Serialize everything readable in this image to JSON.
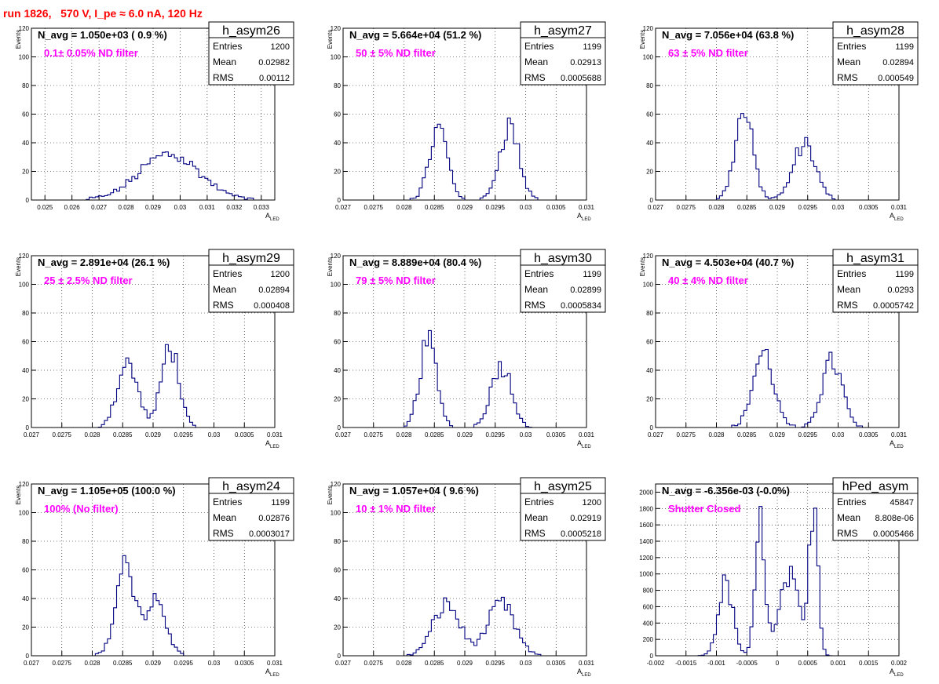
{
  "page_title": "run 1826,   570 V, I_pe ≈ 6.0 nA, 120 Hz",
  "colors": {
    "title": "#ff0000",
    "histogram": "#000080",
    "annotation": "#ff00ff",
    "grid": "#000000",
    "frame": "#000000"
  },
  "chart_data": [
    {
      "type": "bar",
      "name": "h_asym26",
      "navg": "N_avg = 1.050e+03 ( 0.9 %)",
      "note": "0.1± 0.05% ND filter",
      "stats": [
        {
          "label": "Entries",
          "value": "1200"
        },
        {
          "label": "Mean",
          "value": "0.02982"
        },
        {
          "label": "RMS",
          "value": "0.00112"
        }
      ],
      "xlabel": "A_LED",
      "ylabel": "Events",
      "xlim": [
        0.0245,
        0.0335
      ],
      "ylim": [
        0,
        120
      ],
      "xticks": [
        "0.025",
        "0.026",
        "0.027",
        "0.028",
        "0.029",
        "0.03",
        "0.031",
        "0.032",
        "0.033"
      ],
      "xtick_values": [
        0.025,
        0.026,
        0.027,
        0.028,
        0.029,
        0.03,
        0.031,
        0.032,
        0.033
      ],
      "yticks": [
        0,
        20,
        40,
        60,
        80,
        100,
        120
      ],
      "grid": true,
      "peaks": [
        {
          "x": 0.0296,
          "y": 32,
          "w": 0.0011
        }
      ]
    },
    {
      "type": "bar",
      "name": "h_asym27",
      "navg": "N_avg = 5.664e+04 (51.2 %)",
      "note": "50 ± 5% ND filter",
      "stats": [
        {
          "label": "Entries",
          "value": "1199"
        },
        {
          "label": "Mean",
          "value": "0.02913"
        },
        {
          "label": "RMS",
          "value": "0.0005688"
        }
      ],
      "xlabel": "A_LED",
      "ylabel": "Events",
      "xlim": [
        0.027,
        0.031
      ],
      "ylim": [
        0,
        120
      ],
      "xticks": [
        "0.027",
        "0.0275",
        "0.028",
        "0.0285",
        "0.029",
        "0.0295",
        "0.03",
        "0.0305",
        "0.031"
      ],
      "xtick_values": [
        0.027,
        0.0275,
        0.028,
        0.0285,
        0.029,
        0.0295,
        0.03,
        0.0305,
        0.031
      ],
      "yticks": [
        0,
        20,
        40,
        60,
        80,
        100,
        120
      ],
      "grid": true,
      "peaks": [
        {
          "x": 0.02857,
          "y": 50,
          "w": 0.00015
        },
        {
          "x": 0.02973,
          "y": 52,
          "w": 0.00016
        }
      ]
    },
    {
      "type": "bar",
      "name": "h_asym28",
      "navg": "N_avg = 7.056e+04 (63.8 %)",
      "note": "63 ± 5% ND filter",
      "stats": [
        {
          "label": "Entries",
          "value": "1199"
        },
        {
          "label": "Mean",
          "value": "0.02894"
        },
        {
          "label": "RMS",
          "value": "0.000549"
        }
      ],
      "xlabel": "A_LED",
      "ylabel": "Events",
      "xlim": [
        0.027,
        0.031
      ],
      "ylim": [
        0,
        120
      ],
      "xticks": [
        "0.027",
        "0.0275",
        "0.028",
        "0.0285",
        "0.029",
        "0.0295",
        "0.03",
        "0.0305",
        "0.031"
      ],
      "xtick_values": [
        0.027,
        0.0275,
        0.028,
        0.0285,
        0.029,
        0.0295,
        0.03,
        0.0305,
        0.031
      ],
      "yticks": [
        0,
        20,
        40,
        60,
        80,
        100,
        120
      ],
      "grid": true,
      "peaks": [
        {
          "x": 0.02845,
          "y": 60,
          "w": 0.00015
        },
        {
          "x": 0.02945,
          "y": 40,
          "w": 0.00018
        }
      ]
    },
    {
      "type": "bar",
      "name": "h_asym29",
      "navg": "N_avg = 2.891e+04 (26.1 %)",
      "note": "25 ± 2.5% ND filter",
      "stats": [
        {
          "label": "Entries",
          "value": "1200"
        },
        {
          "label": "Mean",
          "value": "0.02894"
        },
        {
          "label": "RMS",
          "value": "0.000408"
        }
      ],
      "xlabel": "A_LED",
      "ylabel": "Events",
      "xlim": [
        0.027,
        0.031
      ],
      "ylim": [
        0,
        120
      ],
      "xticks": [
        "0.027",
        "0.0275",
        "0.028",
        "0.0285",
        "0.029",
        "0.0295",
        "0.03",
        "0.0305",
        "0.031"
      ],
      "xtick_values": [
        0.027,
        0.0275,
        0.028,
        0.0285,
        0.029,
        0.0295,
        0.03,
        0.0305,
        0.031
      ],
      "yticks": [
        0,
        20,
        40,
        60,
        80,
        100,
        120
      ],
      "grid": true,
      "peaks": [
        {
          "x": 0.02858,
          "y": 44,
          "w": 0.00017
        },
        {
          "x": 0.02928,
          "y": 58,
          "w": 0.00014
        }
      ]
    },
    {
      "type": "bar",
      "name": "h_asym30",
      "navg": "N_avg = 8.889e+04 (80.4 %)",
      "note": "79 ± 5% ND filter",
      "stats": [
        {
          "label": "Entries",
          "value": "1199"
        },
        {
          "label": "Mean",
          "value": "0.02899"
        },
        {
          "label": "RMS",
          "value": "0.0005834"
        }
      ],
      "xlabel": "A_LED",
      "ylabel": "Events",
      "xlim": [
        0.027,
        0.031
      ],
      "ylim": [
        0,
        120
      ],
      "xticks": [
        "0.027",
        "0.0275",
        "0.028",
        "0.0285",
        "0.029",
        "0.0295",
        "0.03",
        "0.0305",
        "0.031"
      ],
      "xtick_values": [
        0.027,
        0.0275,
        0.028,
        0.0285,
        0.029,
        0.0295,
        0.03,
        0.0305,
        0.031
      ],
      "yticks": [
        0,
        20,
        40,
        60,
        80,
        100,
        120
      ],
      "grid": true,
      "peaks": [
        {
          "x": 0.0284,
          "y": 60,
          "w": 0.00014
        },
        {
          "x": 0.0296,
          "y": 44,
          "w": 0.00017
        }
      ]
    },
    {
      "type": "bar",
      "name": "h_asym31",
      "navg": "N_avg = 4.503e+04 (40.7 %)",
      "note": "40 ± 4% ND filter",
      "stats": [
        {
          "label": "Entries",
          "value": "1199"
        },
        {
          "label": "Mean",
          "value": "0.0293"
        },
        {
          "label": "RMS",
          "value": "0.0005742"
        }
      ],
      "xlabel": "A_LED",
      "ylabel": "Events",
      "xlim": [
        0.027,
        0.031
      ],
      "ylim": [
        0,
        120
      ],
      "xticks": [
        "0.027",
        "0.0275",
        "0.028",
        "0.0285",
        "0.029",
        "0.0295",
        "0.03",
        "0.0305",
        "0.031"
      ],
      "xtick_values": [
        0.027,
        0.0275,
        0.028,
        0.0285,
        0.029,
        0.0295,
        0.03,
        0.0305,
        0.031
      ],
      "yticks": [
        0,
        20,
        40,
        60,
        80,
        100,
        120
      ],
      "grid": true,
      "peaks": [
        {
          "x": 0.02877,
          "y": 52,
          "w": 0.00017
        },
        {
          "x": 0.0299,
          "y": 46,
          "w": 0.00017
        }
      ]
    },
    {
      "type": "bar",
      "name": "h_asym24",
      "navg": "N_avg = 1.105e+05 (100.0 %)",
      "note": "100% (No filter)",
      "stats": [
        {
          "label": "Entries",
          "value": "1199"
        },
        {
          "label": "Mean",
          "value": "0.02876"
        },
        {
          "label": "RMS",
          "value": "0.0003017"
        }
      ],
      "xlabel": "A_LED",
      "ylabel": "Events",
      "xlim": [
        0.027,
        0.031
      ],
      "ylim": [
        0,
        120
      ],
      "xticks": [
        "0.027",
        "0.0275",
        "0.028",
        "0.0285",
        "0.029",
        "0.0295",
        "0.03",
        "0.0305",
        "0.031"
      ],
      "xtick_values": [
        0.027,
        0.0275,
        0.028,
        0.0285,
        0.029,
        0.0295,
        0.03,
        0.0305,
        0.031
      ],
      "yticks": [
        0,
        20,
        40,
        60,
        80,
        100,
        120
      ],
      "grid": true,
      "peaks": [
        {
          "x": 0.02855,
          "y": 64,
          "w": 0.00016
        },
        {
          "x": 0.02905,
          "y": 38,
          "w": 0.00016
        }
      ]
    },
    {
      "type": "bar",
      "name": "h_asym25",
      "navg": "N_avg = 1.057e+04 ( 9.6 %)",
      "note": "10 ± 1% ND filter",
      "stats": [
        {
          "label": "Entries",
          "value": "1200"
        },
        {
          "label": "Mean",
          "value": "0.02919"
        },
        {
          "label": "RMS",
          "value": "0.0005218"
        }
      ],
      "xlabel": "A_LED",
      "ylabel": "Events",
      "xlim": [
        0.027,
        0.031
      ],
      "ylim": [
        0,
        120
      ],
      "xticks": [
        "0.027",
        "0.0275",
        "0.028",
        "0.0285",
        "0.029",
        "0.0295",
        "0.03",
        "0.0305",
        "0.031"
      ],
      "xtick_values": [
        0.027,
        0.0275,
        0.028,
        0.0285,
        0.029,
        0.0295,
        0.03,
        0.0305,
        0.031
      ],
      "yticks": [
        0,
        20,
        40,
        60,
        80,
        100,
        120
      ],
      "grid": true,
      "peaks": [
        {
          "x": 0.0287,
          "y": 36,
          "w": 0.00022
        },
        {
          "x": 0.0296,
          "y": 36,
          "w": 0.00022
        }
      ]
    },
    {
      "type": "bar",
      "name": "hPed_asym",
      "navg": "N_avg = -6.356e-03 (-0.0%)",
      "note": "Shutter Closed",
      "stats": [
        {
          "label": "Entries",
          "value": "45847"
        },
        {
          "label": "Mean",
          "value": "8.808e-06"
        },
        {
          "label": "RMS",
          "value": "0.0005466"
        }
      ],
      "xlabel": "A_LED",
      "ylabel": "",
      "xlim": [
        -0.002,
        0.002
      ],
      "ylim": [
        0,
        2100
      ],
      "xticks": [
        "-0.002",
        "-0.0015",
        "-0.001",
        "-0.0005",
        "0",
        "0.0005",
        "0.001",
        "0.0015",
        "0.002"
      ],
      "xtick_values": [
        -0.002,
        -0.0015,
        -0.001,
        -0.0005,
        0,
        0.0005,
        0.001,
        0.0015,
        0.002
      ],
      "yticks": [
        0,
        200,
        400,
        600,
        800,
        1000,
        1200,
        1400,
        1600,
        1800,
        2000
      ],
      "grid": true,
      "peaks": [
        {
          "x": -0.00085,
          "y": 880,
          "w": 0.00012
        },
        {
          "x": -0.00028,
          "y": 1600,
          "w": 8e-05
        },
        {
          "x": 0.0002,
          "y": 950,
          "w": 0.00016
        },
        {
          "x": 0.0006,
          "y": 1900,
          "w": 7e-05
        }
      ]
    }
  ]
}
